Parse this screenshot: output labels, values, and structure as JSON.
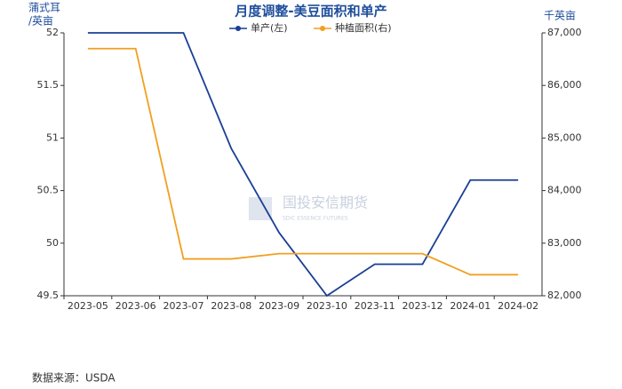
{
  "chart_data": {
    "type": "line",
    "title": "月度调整-美豆面积和单产",
    "ylabel": [
      "蒲式耳",
      "/英亩"
    ],
    "y2label": "千英亩",
    "source": "数据来源：USDA",
    "watermark": "国投安信期货",
    "watermark_sub": "SDIC ESSENCE FUTURES",
    "categories": [
      "2023-05",
      "2023-06",
      "2023-07",
      "2023-08",
      "2023-09",
      "2023-10",
      "2023-11",
      "2023-12",
      "2024-01",
      "2024-02"
    ],
    "series": [
      {
        "name": "单产(左)",
        "color": "#1a3f95",
        "values": [
          52,
          52,
          52,
          50.9,
          50.1,
          49.5,
          49.8,
          49.8,
          50.6,
          50.6
        ]
      },
      {
        "name": "种植面积(右)",
        "color": "#f0a020",
        "axis": "y2",
        "values": [
          86700,
          86700,
          82700,
          82700,
          82800,
          82800,
          82800,
          82800,
          82400,
          82400
        ]
      }
    ],
    "ylim": [
      49.5,
      52
    ],
    "yticks": [
      49.5,
      50,
      50.5,
      51,
      51.5,
      52
    ],
    "y2lim": [
      82000,
      87000
    ],
    "y2ticks": [
      {
        "value": 82000,
        "label": "82,000"
      },
      {
        "value": 83000,
        "label": "83,000"
      },
      {
        "value": 84000,
        "label": "84,000"
      },
      {
        "value": 85000,
        "label": "85,000"
      },
      {
        "value": 86000,
        "label": "86,000"
      },
      {
        "value": 87000,
        "label": "87,000"
      }
    ],
    "grid": false,
    "legend": "top"
  }
}
